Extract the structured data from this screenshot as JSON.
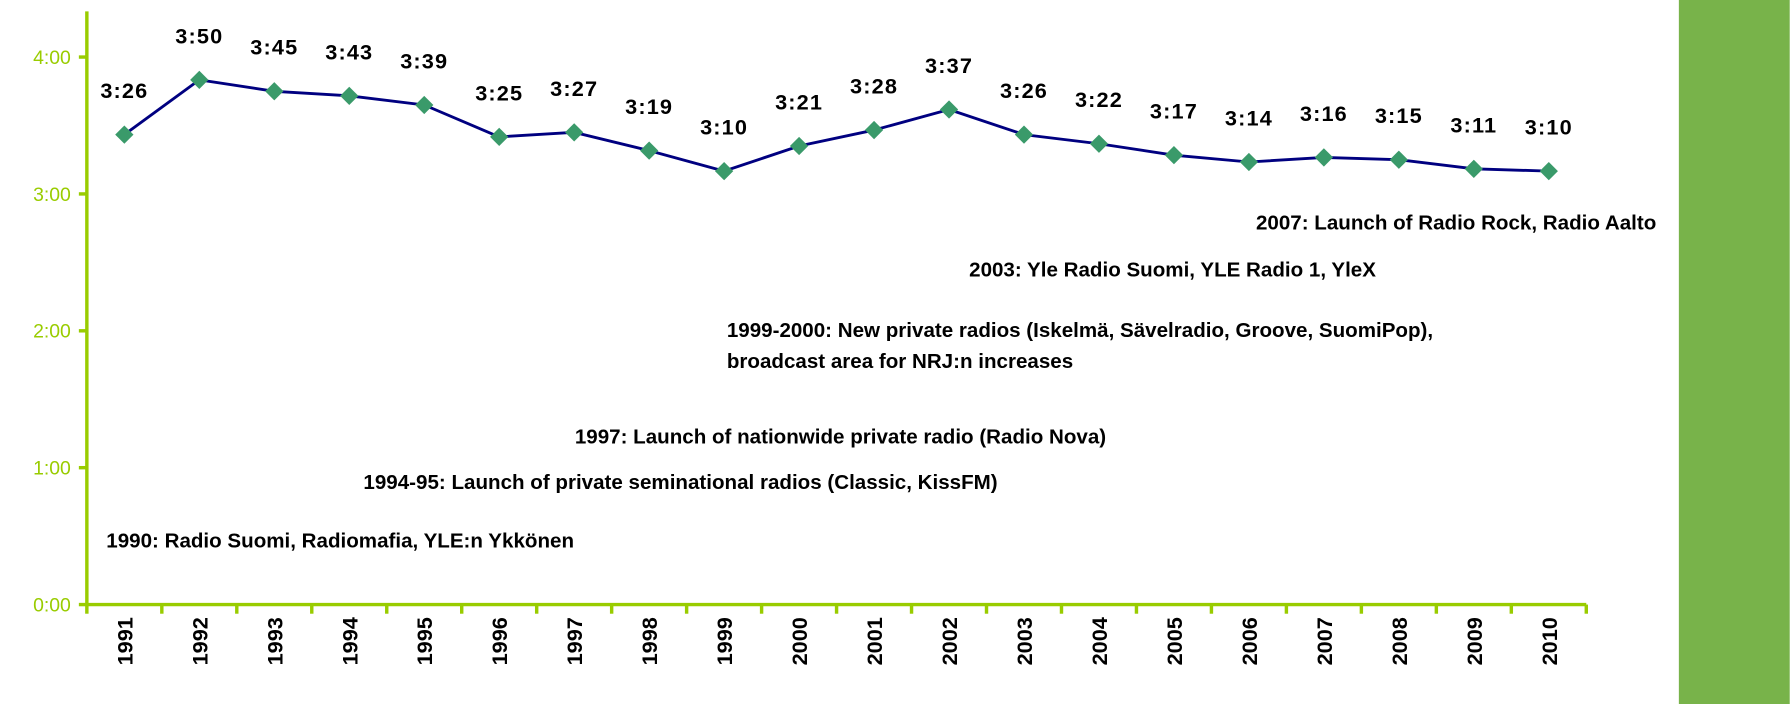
{
  "chart_data": {
    "type": "line",
    "categories": [
      "1991",
      "1992",
      "1993",
      "1994",
      "1995",
      "1996",
      "1997",
      "1998",
      "1999",
      "2000",
      "2001",
      "2002",
      "2003",
      "2004",
      "2005",
      "2006",
      "2007",
      "2008",
      "2009",
      "2010"
    ],
    "series": [
      {
        "color": "#000080",
        "marker_color": "#3a9a6a",
        "values": [
          206,
          230,
          225,
          223,
          219,
          205,
          207,
          199,
          190,
          201,
          208,
          217,
          206,
          202,
          197,
          194,
          196,
          195,
          191,
          190
        ],
        "value_labels": [
          "3:26",
          "3:50",
          "3:45",
          "3:43",
          "3:39",
          "3:25",
          "3:27",
          "3:19",
          "3:10",
          "3:21",
          "3:28",
          "3:37",
          "3:26",
          "3:22",
          "3:17",
          "3:14",
          "3:16",
          "3:15",
          "3:11",
          "3:10"
        ]
      }
    ],
    "ylim": [
      0,
      260
    ],
    "yticks": [
      {
        "value": 0,
        "label": "0:00"
      },
      {
        "value": 60,
        "label": "1:00"
      },
      {
        "value": 120,
        "label": "2:00"
      },
      {
        "value": 180,
        "label": "3:00"
      },
      {
        "value": 240,
        "label": "4:00"
      }
    ],
    "annotations": [
      [
        "2007: Launch of Radio Rock, Radio Aalto"
      ],
      [
        "2003: Yle Radio Suomi, YLE Radio 1, YleX"
      ],
      [
        "1999-2000: New private radios (Iskelmä, Sävelradio, Groove, SuomiPop),",
        "broadcast area for NRJ:n increases"
      ],
      [
        "1997: Launch of nationwide private radio (Radio Nova)"
      ],
      [
        "1994-95: Launch of private seminational radios (Classic, KissFM)"
      ],
      [
        "1990: Radio Suomi, Radiomafia, YLE:n Ykkönen"
      ]
    ]
  }
}
